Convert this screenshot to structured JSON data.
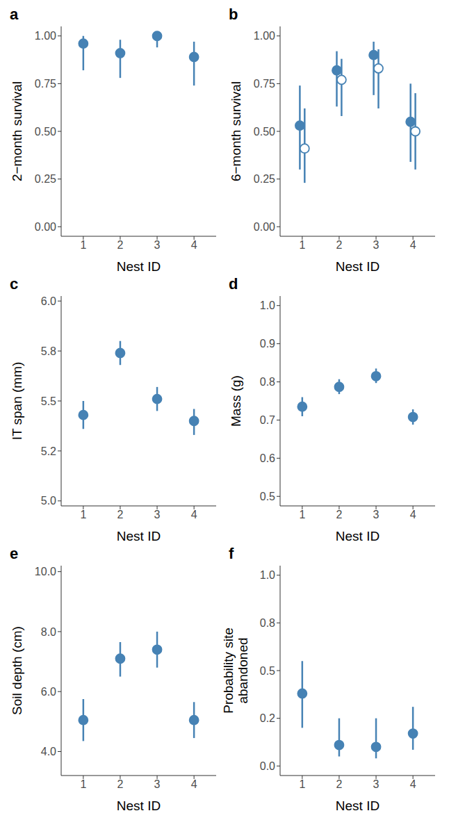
{
  "chart_data": [
    {
      "label": "a",
      "type": "scatter",
      "x_label": "Nest ID",
      "y_label": "2−month survival",
      "categories": [
        "1",
        "2",
        "3",
        "4"
      ],
      "ylim": [
        -0.05,
        1.05
      ],
      "yticks": [
        {
          "value": 0,
          "label": "0.00"
        },
        0.25,
        {
          "value": 0.5,
          "label": "0.50"
        },
        0.75,
        {
          "value": 1,
          "label": "1.00"
        }
      ],
      "series": [
        {
          "color": "#4682b4",
          "marker": "filled",
          "values": [
            0.96,
            0.91,
            1.0,
            0.89
          ],
          "error_low": [
            0.82,
            0.78,
            0.94,
            0.74
          ],
          "error_high": [
            1.0,
            0.98,
            1.0,
            0.97
          ]
        }
      ]
    },
    {
      "label": "b",
      "type": "scatter",
      "x_label": "Nest ID",
      "y_label": "6−month survival",
      "categories": [
        "1",
        "2",
        "3",
        "4"
      ],
      "ylim": [
        -0.05,
        1.05
      ],
      "yticks": [
        {
          "value": 0,
          "label": "0.00"
        },
        0.25,
        {
          "value": 0.5,
          "label": "0.50"
        },
        0.75,
        {
          "value": 1,
          "label": "1.00"
        }
      ],
      "series": [
        {
          "color": "#4682b4",
          "marker": "filled",
          "values": [
            0.53,
            0.82,
            0.9,
            0.55
          ],
          "error_low": [
            0.3,
            0.63,
            0.69,
            0.34
          ],
          "error_high": [
            0.74,
            0.92,
            0.97,
            0.75
          ]
        },
        {
          "color": "#4682b4",
          "marker": "open",
          "values": [
            0.41,
            0.77,
            0.83,
            0.5
          ],
          "error_low": [
            0.23,
            0.58,
            0.62,
            0.3
          ],
          "error_high": [
            0.62,
            0.88,
            0.93,
            0.7
          ]
        }
      ]
    },
    {
      "label": "c",
      "type": "scatter",
      "x_label": "Nest ID",
      "y_label": "IT span (mm)",
      "categories": [
        "1",
        "2",
        "3",
        "4"
      ],
      "ylim": [
        4.975,
        6.025
      ],
      "yticks": [
        {
          "value": 5,
          "label": "5.0"
        },
        {
          "value": 5.25,
          "label": "5.2"
        },
        5.5,
        {
          "value": 5.75,
          "label": "5.8"
        },
        {
          "value": 6,
          "label": "6.0"
        }
      ],
      "series": [
        {
          "color": "#4682b4",
          "marker": "filled",
          "values": [
            5.43,
            5.74,
            5.51,
            5.4
          ],
          "error_low": [
            5.36,
            5.68,
            5.45,
            5.33
          ],
          "error_high": [
            5.5,
            5.8,
            5.57,
            5.46
          ]
        }
      ]
    },
    {
      "label": "d",
      "type": "scatter",
      "x_label": "Nest ID",
      "y_label": "Mass (g)",
      "categories": [
        "1",
        "2",
        "3",
        "4"
      ],
      "ylim": [
        0.475,
        1.025
      ],
      "yticks": [
        0.5,
        0.6,
        0.7,
        0.8,
        0.9,
        {
          "value": 1,
          "label": "1.0"
        }
      ],
      "series": [
        {
          "color": "#4682b4",
          "marker": "filled",
          "values": [
            0.735,
            0.787,
            0.815,
            0.708
          ],
          "error_low": [
            0.71,
            0.768,
            0.797,
            0.688
          ],
          "error_high": [
            0.76,
            0.807,
            0.835,
            0.728
          ]
        }
      ]
    },
    {
      "label": "e",
      "type": "scatter",
      "x_label": "Nest ID",
      "y_label": "Soil depth (cm)",
      "categories": [
        "1",
        "2",
        "3",
        "4"
      ],
      "ylim": [
        3.2,
        10.2
      ],
      "yticks": [
        {
          "value": 4,
          "label": "4.0"
        },
        {
          "value": 6,
          "label": "6.0"
        },
        {
          "value": 8,
          "label": "8.0"
        },
        {
          "value": 10,
          "label": "10.0"
        }
      ],
      "series": [
        {
          "color": "#4682b4",
          "marker": "filled",
          "values": [
            5.05,
            7.1,
            7.4,
            5.05
          ],
          "error_low": [
            4.35,
            6.5,
            6.8,
            4.45
          ],
          "error_high": [
            5.75,
            7.65,
            8.0,
            5.65
          ]
        }
      ]
    },
    {
      "label": "f",
      "type": "scatter",
      "x_label": "Nest ID",
      "y_label": "Probability site\nabandoned",
      "categories": [
        "1",
        "2",
        "3",
        "4"
      ],
      "ylim": [
        -0.05,
        1.05
      ],
      "yticks": [
        {
          "value": 0,
          "label": "0.0"
        },
        {
          "value": 0.25,
          "label": "0.2"
        },
        0.5,
        {
          "value": 0.75,
          "label": "0.8"
        },
        {
          "value": 1,
          "label": "1.0"
        }
      ],
      "series": [
        {
          "color": "#4682b4",
          "marker": "filled",
          "values": [
            0.38,
            0.11,
            0.1,
            0.17
          ],
          "error_low": [
            0.2,
            0.05,
            0.04,
            0.085
          ],
          "error_high": [
            0.55,
            0.25,
            0.25,
            0.31
          ]
        }
      ]
    }
  ]
}
